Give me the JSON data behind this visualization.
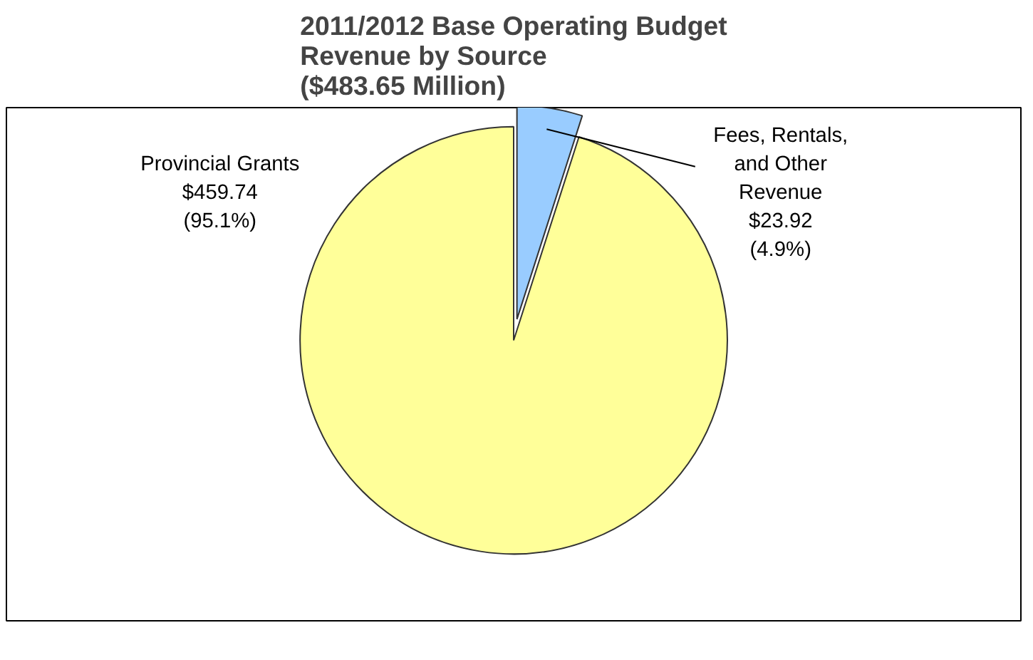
{
  "chart_data": {
    "type": "pie",
    "title": "2011/2012 Base Operating Budget\nRevenue by Source\n($483.65 Million)",
    "categories": [
      "Provincial Grants",
      "Fees, Rentals, and Other Revenue"
    ],
    "values": [
      459.74,
      23.92
    ],
    "colors": [
      "#ffff99",
      "#99ccff"
    ],
    "value_labels": [
      "$459.74\n(95.1%)",
      "$23.92\n(4.9%)"
    ]
  }
}
